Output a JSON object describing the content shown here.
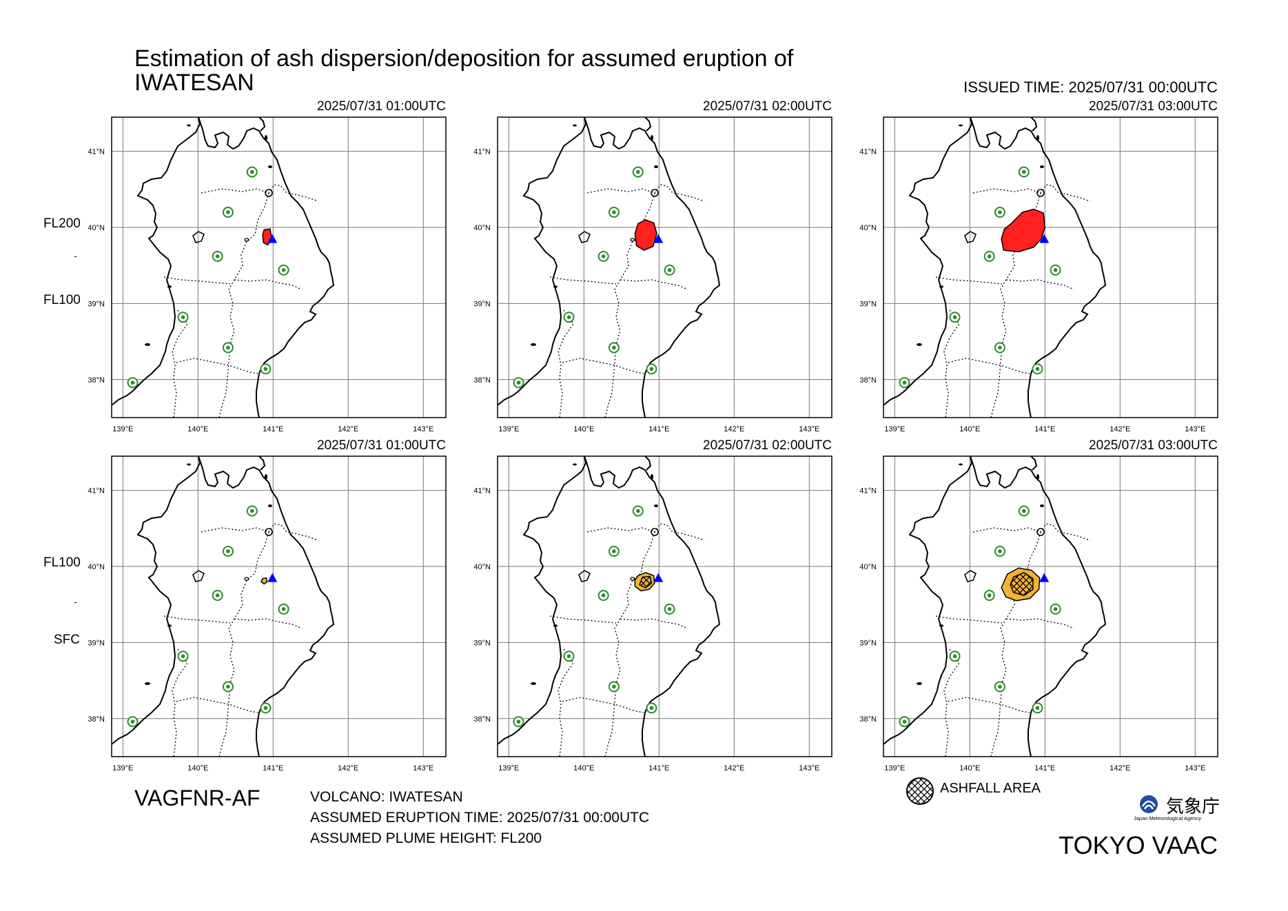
{
  "header": {
    "title_line1": "Estimation of ash dispersion/deposition for assumed eruption of",
    "title_line2": "IWATESAN",
    "issued": "ISSUED TIME: 2025/07/31 00:00UTC"
  },
  "map_axes": {
    "lon_ticks": [
      "139°E",
      "140°E",
      "141°E",
      "142°E",
      "143°E"
    ],
    "lat_ticks": [
      "41°N",
      "40°N",
      "39°N",
      "38°N"
    ],
    "lon_range": [
      138.85,
      143.3
    ],
    "lat_range": [
      37.5,
      41.45
    ]
  },
  "rows": [
    {
      "upper_label": "FL200",
      "lower_label": "FL100",
      "layer": "dispersion"
    },
    {
      "upper_label": "FL100",
      "lower_label": "SFC",
      "layer": "deposition"
    }
  ],
  "panels": [
    {
      "time": "2025/07/31 01:00UTC"
    },
    {
      "time": "2025/07/31 02:00UTC"
    },
    {
      "time": "2025/07/31 03:00UTC"
    },
    {
      "time": "2025/07/31 01:00UTC"
    },
    {
      "time": "2025/07/31 02:00UTC"
    },
    {
      "time": "2025/07/31 03:00UTC"
    }
  ],
  "volcano_marker": {
    "lon": 140.99,
    "lat": 39.85,
    "color": "#0000ff"
  },
  "other_volcanoes": [
    {
      "lon": 140.72,
      "lat": 40.73
    },
    {
      "lon": 140.4,
      "lat": 40.2
    },
    {
      "lon": 140.26,
      "lat": 39.62
    },
    {
      "lon": 141.14,
      "lat": 39.44
    },
    {
      "lon": 139.8,
      "lat": 38.82
    },
    {
      "lon": 140.4,
      "lat": 38.42
    },
    {
      "lon": 140.9,
      "lat": 38.14
    },
    {
      "lon": 139.13,
      "lat": 37.96
    }
  ],
  "colors": {
    "dispersion": "#ff2020",
    "deposition": "#f2b233",
    "volcano_ring": "#2a8c2a",
    "grid": "#777777"
  },
  "footer": {
    "product": "VAGFNR-AF",
    "volcano": "VOLCANO: IWATESAN",
    "eruption_time": "ASSUMED ERUPTION TIME: 2025/07/31 00:00UTC",
    "plume_height": "ASSUMED PLUME HEIGHT: FL200",
    "legend_ashfall": "ASHFALL AREA",
    "agency_name": "気象庁",
    "agency_sub": "Japan Meteorological Agency",
    "office": "TOKYO VAAC"
  }
}
